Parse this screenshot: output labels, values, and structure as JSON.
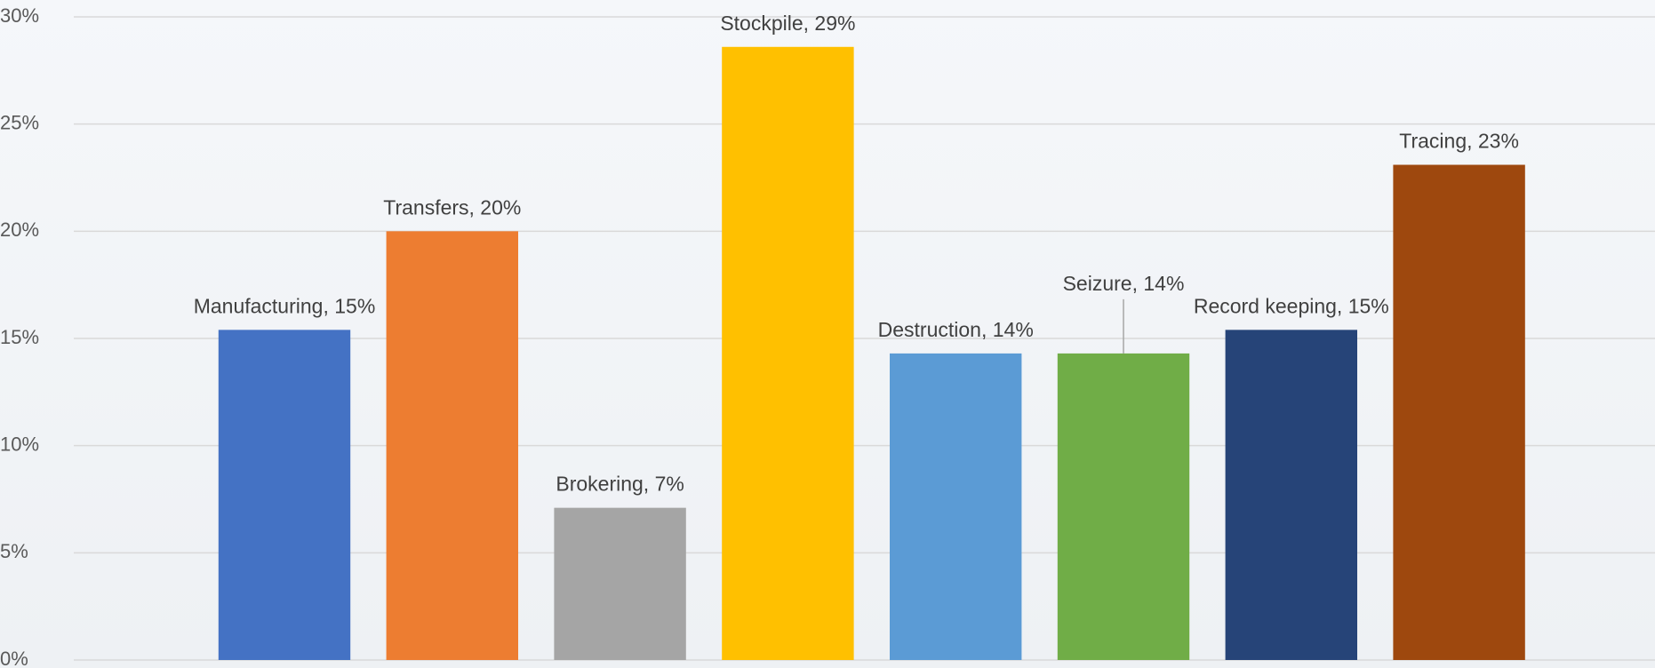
{
  "chart_data": {
    "type": "bar",
    "value_labels": [
      "Manufacturing, 15%",
      "Transfers, 20%",
      "Brokering, 7%",
      "Stockpile, 29%",
      "Destruction, 14%",
      "Seizure, 14%",
      "Record keeping, 15%",
      "Tracing, 23%"
    ],
    "values": [
      15.4,
      20.0,
      7.1,
      28.6,
      14.3,
      14.3,
      15.4,
      23.1
    ],
    "colors": [
      "#4472c4",
      "#ed7d31",
      "#a5a5a5",
      "#ffc000",
      "#5b9bd5",
      "#70ad47",
      "#264478",
      "#9e480e"
    ],
    "ylim": [
      0,
      30
    ],
    "yticks": [
      {
        "value": 0,
        "label": "0%"
      },
      {
        "value": 5,
        "label": "5%"
      },
      {
        "value": 10,
        "label": "10%"
      },
      {
        "value": 15,
        "label": "15%"
      },
      {
        "value": 20,
        "label": "20%"
      },
      {
        "value": 25,
        "label": "25%"
      },
      {
        "value": 30,
        "label": "30%"
      }
    ],
    "grid": true
  }
}
